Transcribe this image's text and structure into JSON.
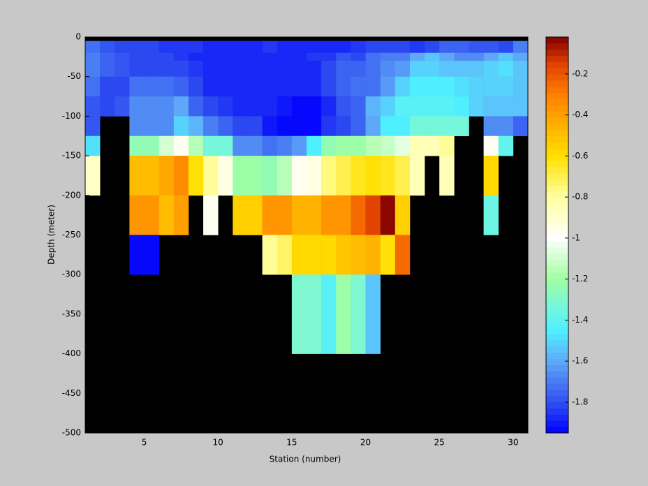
{
  "chart_data": {
    "type": "heatmap",
    "xlabel": "Station (number)",
    "ylabel": "Depth (meter)",
    "x": [
      1,
      2,
      3,
      4,
      5,
      6,
      7,
      8,
      9,
      10,
      11,
      12,
      13,
      14,
      15,
      16,
      17,
      18,
      19,
      20,
      21,
      22,
      23,
      24,
      25,
      26,
      27,
      28,
      29,
      30,
      31
    ],
    "y": [
      0,
      -5,
      -20,
      -30,
      -50,
      -75,
      -100,
      -125,
      -150,
      -200,
      -250,
      -300,
      -400,
      -500
    ],
    "values": [
      [
        null,
        null,
        null,
        null,
        null,
        null,
        null,
        null,
        null,
        null,
        null,
        null,
        null,
        null,
        null,
        null,
        null,
        null,
        null,
        null,
        null,
        null,
        null,
        null,
        null,
        null,
        null,
        null,
        null,
        null
      ],
      [
        -1.72,
        -1.78,
        -1.8,
        -1.82,
        -1.82,
        -1.84,
        -1.85,
        -1.85,
        -1.86,
        -1.86,
        -1.86,
        -1.86,
        -1.85,
        -1.86,
        -1.86,
        -1.86,
        -1.86,
        -1.86,
        -1.85,
        -1.8,
        -1.8,
        -1.82,
        -1.85,
        -1.8,
        -1.75,
        -1.75,
        -1.78,
        -1.78,
        -1.8,
        -1.68
      ],
      [
        -1.7,
        -1.75,
        -1.78,
        -1.82,
        -1.82,
        -1.82,
        -1.84,
        -1.86,
        -1.87,
        -1.87,
        -1.87,
        -1.87,
        -1.87,
        -1.87,
        -1.86,
        -1.85,
        -1.85,
        -1.78,
        -1.8,
        -1.72,
        -1.7,
        -1.68,
        -1.6,
        -1.55,
        -1.6,
        -1.65,
        -1.65,
        -1.6,
        -1.55,
        -1.6
      ],
      [
        -1.68,
        -1.76,
        -1.78,
        -1.8,
        -1.8,
        -1.8,
        -1.82,
        -1.85,
        -1.86,
        -1.88,
        -1.88,
        -1.88,
        -1.88,
        -1.88,
        -1.86,
        -1.86,
        -1.8,
        -1.75,
        -1.75,
        -1.72,
        -1.65,
        -1.62,
        -1.5,
        -1.5,
        -1.55,
        -1.55,
        -1.55,
        -1.52,
        -1.48,
        -1.55
      ],
      [
        -1.72,
        -1.82,
        -1.8,
        -1.72,
        -1.72,
        -1.72,
        -1.76,
        -1.82,
        -1.86,
        -1.86,
        -1.88,
        -1.88,
        -1.88,
        -1.88,
        -1.88,
        -1.88,
        -1.82,
        -1.74,
        -1.72,
        -1.72,
        -1.62,
        -1.5,
        -1.45,
        -1.45,
        -1.45,
        -1.48,
        -1.5,
        -1.5,
        -1.5,
        -1.55
      ],
      [
        -1.78,
        -1.8,
        -1.78,
        -1.65,
        -1.65,
        -1.65,
        -1.6,
        -1.75,
        -1.82,
        -1.84,
        -1.88,
        -1.88,
        -1.88,
        -1.9,
        -1.92,
        -1.92,
        -1.86,
        -1.78,
        -1.75,
        -1.58,
        -1.5,
        -1.42,
        -1.42,
        -1.42,
        -1.42,
        -1.45,
        -1.5,
        -1.55,
        -1.55,
        -1.55
      ],
      [
        -1.78,
        null,
        null,
        -1.65,
        -1.65,
        -1.65,
        -1.5,
        -1.58,
        -1.7,
        -1.75,
        -1.8,
        -1.8,
        -1.9,
        -1.92,
        -1.95,
        -1.95,
        -1.85,
        -1.8,
        -1.75,
        -1.6,
        -1.45,
        -1.45,
        -1.32,
        -1.32,
        -1.32,
        -1.32,
        null,
        -1.65,
        -1.65,
        -1.75
      ],
      [
        -1.48,
        null,
        null,
        -1.25,
        -1.25,
        -1.1,
        -0.97,
        -1.15,
        -1.33,
        -1.33,
        -1.65,
        -1.65,
        -1.72,
        -1.68,
        -1.62,
        -1.45,
        -1.25,
        -1.22,
        -1.2,
        -1.15,
        -1.12,
        -1.05,
        -0.85,
        -0.85,
        -0.8,
        null,
        null,
        -0.97,
        -1.4,
        null
      ],
      [
        -0.88,
        null,
        null,
        -0.5,
        -0.5,
        -0.42,
        -0.35,
        -0.6,
        -0.8,
        -0.95,
        -1.2,
        -1.2,
        -1.25,
        -1.15,
        -0.97,
        -0.93,
        -0.75,
        -0.7,
        -0.65,
        -0.6,
        -0.65,
        -0.7,
        -0.85,
        null,
        -0.85,
        null,
        null,
        -0.58,
        null,
        null
      ],
      [
        null,
        null,
        null,
        -0.38,
        -0.38,
        -0.5,
        -0.4,
        null,
        -0.98,
        null,
        -0.55,
        -0.55,
        -0.36,
        -0.36,
        -0.45,
        -0.45,
        -0.38,
        -0.36,
        -0.25,
        -0.15,
        -0.05,
        -0.55,
        null,
        null,
        null,
        null,
        null,
        -1.35,
        null,
        null
      ],
      [
        null,
        null,
        null,
        -1.95,
        -1.95,
        null,
        null,
        null,
        null,
        null,
        null,
        null,
        -0.8,
        -0.72,
        -0.58,
        -0.58,
        -0.58,
        -0.52,
        -0.5,
        -0.47,
        -0.6,
        -0.25,
        null,
        null,
        null,
        null,
        null,
        null,
        null,
        null
      ],
      [
        null,
        null,
        null,
        null,
        null,
        null,
        null,
        null,
        null,
        null,
        null,
        null,
        null,
        null,
        -1.3,
        -1.3,
        -1.42,
        -1.22,
        -1.3,
        -1.55,
        null,
        null,
        null,
        null,
        null,
        null,
        null,
        null,
        null,
        null
      ],
      [
        null,
        null,
        null,
        null,
        null,
        null,
        null,
        null,
        null,
        null,
        null,
        null,
        null,
        null,
        null,
        null,
        null,
        null,
        null,
        null,
        null,
        null,
        null,
        null,
        null,
        null,
        null,
        null,
        null,
        null
      ]
    ],
    "xlim": [
      1,
      31
    ],
    "xticks": [
      5,
      10,
      15,
      20,
      25,
      30
    ],
    "ylim": [
      -500,
      0
    ],
    "yticks": [
      0,
      -50,
      -100,
      -150,
      -200,
      -250,
      -300,
      -350,
      -400,
      -450,
      -500
    ],
    "clim": [
      -1.95,
      -0.02
    ],
    "cticks": [
      -0.2,
      -0.4,
      -0.6,
      -0.8,
      -1,
      -1.2,
      -1.4,
      -1.6,
      -1.8
    ],
    "colormap_levels": 64,
    "nan_color": "#000000"
  }
}
